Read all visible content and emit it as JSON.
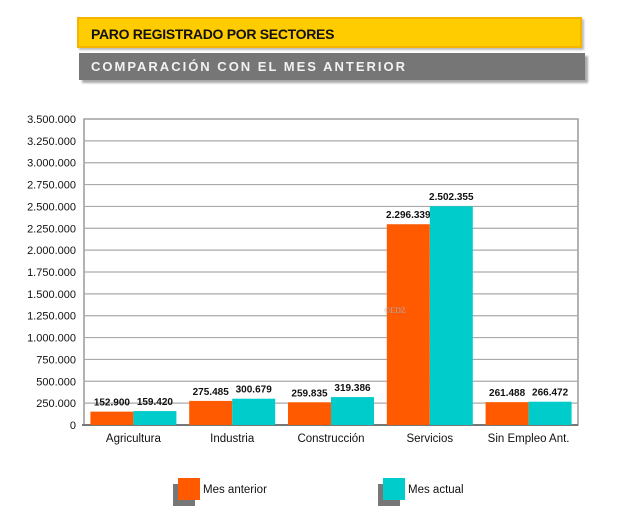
{
  "header": {
    "title": "PARO REGISTRADO POR SECTORES",
    "subtitle": "COMPARACIÓN CON EL MES ANTERIOR"
  },
  "watermark": "EDZ",
  "chart_data": {
    "type": "bar",
    "categories": [
      "Agricultura",
      "Industria",
      "Construcción",
      "Servicios",
      "Sin Empleo Ant."
    ],
    "series": [
      {
        "name": "Mes anterior",
        "color": "#ff5a00",
        "values": [
          152900,
          275485,
          259835,
          2296339,
          261488
        ],
        "labels": [
          "152.900",
          "275.485",
          "259.835",
          "2.296.339",
          "261.488"
        ]
      },
      {
        "name": "Mes actual",
        "color": "#00cccc",
        "values": [
          159420,
          300679,
          319386,
          2502355,
          266472
        ],
        "labels": [
          "159.420",
          "300.679",
          "319.386",
          "2.502.355",
          "266.472"
        ]
      }
    ],
    "ylim": [
      0,
      3500000
    ],
    "yticks": [
      "0",
      "250.000",
      "500.000",
      "750.000",
      "1.000.000",
      "1.250.000",
      "1.500.000",
      "1.750.000",
      "2.000.000",
      "2.250.000",
      "2.500.000",
      "2.750.000",
      "3.000.000",
      "3.250.000",
      "3.500.000"
    ],
    "grid": true,
    "legend": "bottom",
    "title": "",
    "xlabel": "",
    "ylabel": ""
  }
}
